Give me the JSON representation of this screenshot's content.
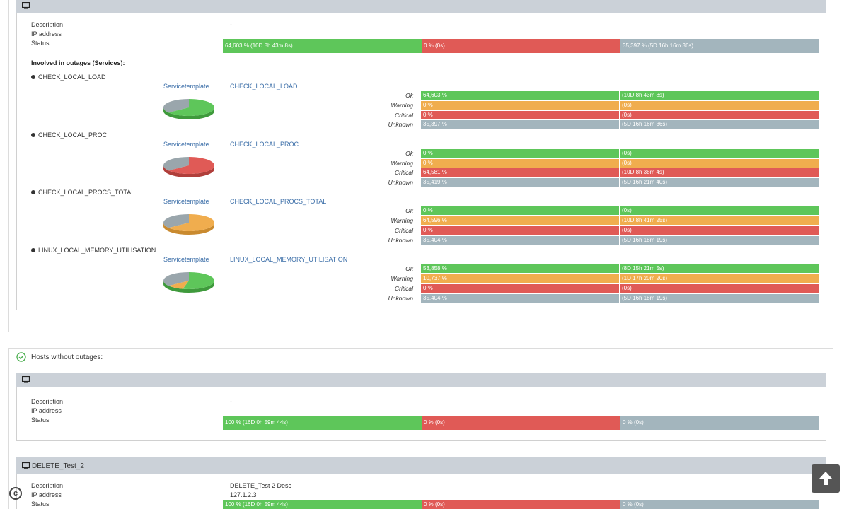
{
  "labels": {
    "description": "Description",
    "ip_address": "IP address",
    "status": "Status",
    "involved": "Involved in outages (Services):",
    "servicetemplate": "Servicetemplate",
    "hosts_without_outages": "Hosts without outages:"
  },
  "state_labels": {
    "ok": "Ok",
    "warning": "Warning",
    "critical": "Critical",
    "unknown": "Unknown"
  },
  "host1": {
    "name": "",
    "description": "-",
    "ip": "",
    "status": [
      {
        "state": "ok",
        "percent": 64.603,
        "text": "64,603 % (10D 8h 43m 8s)"
      },
      {
        "state": "critical",
        "percent": 0,
        "text": "0 % (0s)"
      },
      {
        "state": "unknown",
        "percent": 35.397,
        "text": "35,397 % (5D 16h 16m 36s)"
      }
    ],
    "services": [
      {
        "name": "CHECK_LOCAL_LOAD",
        "template": "CHECK_LOCAL_LOAD",
        "pie": {
          "ok": 64.603,
          "warning": 0,
          "critical": 0,
          "unknown": 35.397
        },
        "rows": [
          {
            "state": "ok",
            "pct": "64,603 %",
            "dur": "(10D 8h 43m 8s)"
          },
          {
            "state": "warning",
            "pct": "0 %",
            "dur": "(0s)"
          },
          {
            "state": "critical",
            "pct": "0 %",
            "dur": "(0s)"
          },
          {
            "state": "unknown",
            "pct": "35,397 %",
            "dur": "(5D 16h 16m 36s)"
          }
        ]
      },
      {
        "name": "CHECK_LOCAL_PROC",
        "template": "CHECK_LOCAL_PROC",
        "pie": {
          "ok": 0,
          "warning": 0,
          "critical": 64.581,
          "unknown": 35.419
        },
        "rows": [
          {
            "state": "ok",
            "pct": "0 %",
            "dur": "(0s)"
          },
          {
            "state": "warning",
            "pct": "0 %",
            "dur": "(0s)"
          },
          {
            "state": "critical",
            "pct": "64,581 %",
            "dur": "(10D 8h 38m 4s)"
          },
          {
            "state": "unknown",
            "pct": "35,419 %",
            "dur": "(5D 16h 21m 40s)"
          }
        ]
      },
      {
        "name": "CHECK_LOCAL_PROCS_TOTAL",
        "template": "CHECK_LOCAL_PROCS_TOTAL",
        "pie": {
          "ok": 0,
          "warning": 64.596,
          "critical": 0,
          "unknown": 35.404
        },
        "rows": [
          {
            "state": "ok",
            "pct": "0 %",
            "dur": "(0s)"
          },
          {
            "state": "warning",
            "pct": "64,596 %",
            "dur": "(10D 8h 41m 25s)"
          },
          {
            "state": "critical",
            "pct": "0 %",
            "dur": "(0s)"
          },
          {
            "state": "unknown",
            "pct": "35,404 %",
            "dur": "(5D 16h 18m 19s)"
          }
        ]
      },
      {
        "name": "LINUX_LOCAL_MEMORY_UTILISATION",
        "template": "LINUX_LOCAL_MEMORY_UTILISATION",
        "pie": {
          "ok": 53.858,
          "warning": 10.737,
          "critical": 0,
          "unknown": 35.404
        },
        "rows": [
          {
            "state": "ok",
            "pct": "53,858 %",
            "dur": "(8D 15h 21m 5s)"
          },
          {
            "state": "warning",
            "pct": "10,737 %",
            "dur": "(1D 17h 20m 20s)"
          },
          {
            "state": "critical",
            "pct": "0 %",
            "dur": "(0s)"
          },
          {
            "state": "unknown",
            "pct": "35,404 %",
            "dur": "(5D 16h 18m 19s)"
          }
        ]
      }
    ]
  },
  "host2": {
    "name": "",
    "description": "-",
    "ip": "",
    "status": [
      {
        "state": "ok",
        "percent": 100,
        "text": "100 % (16D 0h 59m 44s)"
      },
      {
        "state": "critical",
        "percent": 0,
        "text": "0 % (0s)"
      },
      {
        "state": "unknown",
        "percent": 0,
        "text": "0 % (0s)"
      }
    ]
  },
  "host3": {
    "name": "DELETE_Test_2",
    "description": "DELETE_Test 2 Desc",
    "ip": "127.1.2.3",
    "status": [
      {
        "state": "ok",
        "percent": 100,
        "text": "100 % (16D 0h 59m 44s)"
      },
      {
        "state": "critical",
        "percent": 0,
        "text": "0 % (0s)"
      },
      {
        "state": "unknown",
        "percent": 0,
        "text": "0 % (0s)"
      }
    ]
  },
  "colors": {
    "ok": "#5ec65a",
    "warning": "#f0ad4e",
    "critical": "#e05a56",
    "unknown": "#a3b5bd",
    "header": "#cbd1d8"
  },
  "icons": {
    "host": "monitor-icon",
    "check": "check-circle-icon",
    "scroll": "arrow-up-icon",
    "copyright": "copyright-icon"
  }
}
